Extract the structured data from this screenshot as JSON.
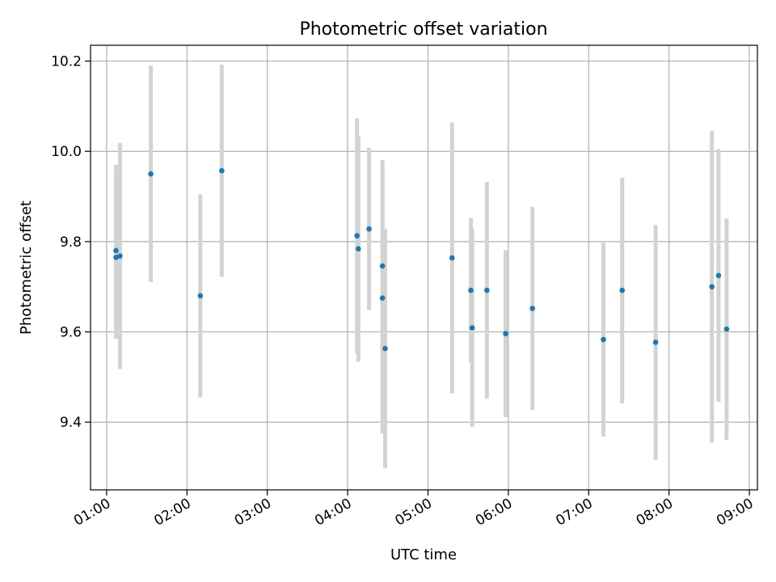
{
  "chart_data": {
    "type": "scatter",
    "title": "Photometric offset variation",
    "xlabel": "UTC time",
    "ylabel": "Photometric offset",
    "x_axis": "time",
    "x_ticks": [
      "01:00",
      "02:00",
      "03:00",
      "04:00",
      "05:00",
      "06:00",
      "07:00",
      "08:00",
      "09:00"
    ],
    "y_ticks": [
      "9.4",
      "9.6",
      "9.8",
      "10.0",
      "10.2"
    ],
    "xlim": [
      "00:48",
      "09:06"
    ],
    "ylim": [
      9.25,
      10.235
    ],
    "grid": true,
    "point_color": "#1f77b4",
    "errorbar_color": "#d3d3d3",
    "points": [
      {
        "x": "01:07",
        "y": 9.765,
        "err": 0.18
      },
      {
        "x": "01:07",
        "y": 9.78,
        "err": 0.19
      },
      {
        "x": "01:10",
        "y": 9.768,
        "err": 0.25
      },
      {
        "x": "01:33",
        "y": 9.95,
        "err": 0.24
      },
      {
        "x": "02:10",
        "y": 9.68,
        "err": 0.225
      },
      {
        "x": "02:26",
        "y": 9.957,
        "err": 0.235
      },
      {
        "x": "04:07",
        "y": 9.813,
        "err": 0.26
      },
      {
        "x": "04:08",
        "y": 9.784,
        "err": 0.25
      },
      {
        "x": "04:16",
        "y": 9.828,
        "err": 0.18
      },
      {
        "x": "04:26",
        "y": 9.746,
        "err": 0.235
      },
      {
        "x": "04:26",
        "y": 9.675,
        "err": 0.3
      },
      {
        "x": "04:28",
        "y": 9.563,
        "err": 0.265
      },
      {
        "x": "05:18",
        "y": 9.764,
        "err": 0.3
      },
      {
        "x": "05:32",
        "y": 9.692,
        "err": 0.16
      },
      {
        "x": "05:33",
        "y": 9.609,
        "err": 0.22
      },
      {
        "x": "05:44",
        "y": 9.692,
        "err": 0.24
      },
      {
        "x": "05:58",
        "y": 9.596,
        "err": 0.185
      },
      {
        "x": "06:18",
        "y": 9.652,
        "err": 0.225
      },
      {
        "x": "07:11",
        "y": 9.583,
        "err": 0.215
      },
      {
        "x": "07:25",
        "y": 9.692,
        "err": 0.25
      },
      {
        "x": "07:50",
        "y": 9.577,
        "err": 0.26
      },
      {
        "x": "08:32",
        "y": 9.7,
        "err": 0.345
      },
      {
        "x": "08:37",
        "y": 9.725,
        "err": 0.28
      },
      {
        "x": "08:43",
        "y": 9.606,
        "err": 0.245
      }
    ]
  }
}
